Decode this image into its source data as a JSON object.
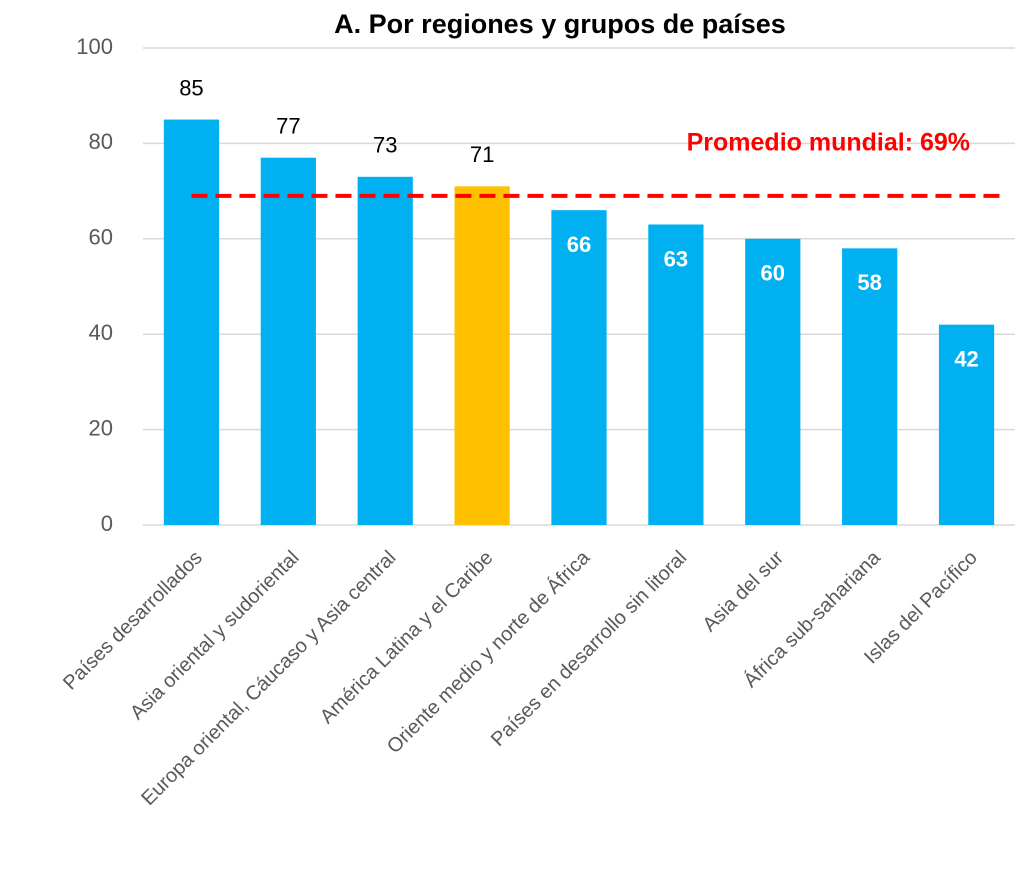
{
  "chart_data": {
    "type": "bar",
    "title": "A. Por regiones y grupos de países",
    "categories": [
      "Países desarrollados",
      "Asia oriental y sudoriental",
      "Europa oriental, Cáucaso y Asia central",
      "América Latina y el Caribe",
      "Oriente medio y norte de África",
      "Países en desarrollo sin litoral",
      "Asia del sur",
      "África sub-sahariana",
      "Islas del Pacífico"
    ],
    "values": [
      85,
      77,
      73,
      71,
      66,
      63,
      60,
      58,
      42
    ],
    "colors": [
      "#00b0f0",
      "#00b0f0",
      "#00b0f0",
      "#ffc000",
      "#00b0f0",
      "#00b0f0",
      "#00b0f0",
      "#00b0f0",
      "#00b0f0"
    ],
    "ylim": [
      0,
      100
    ],
    "yticks": [
      0,
      20,
      40,
      60,
      80,
      100
    ],
    "grid": true,
    "reference_line": {
      "value": 69,
      "label": "Promedio mundial: 69%",
      "color": "#ff0000"
    }
  }
}
